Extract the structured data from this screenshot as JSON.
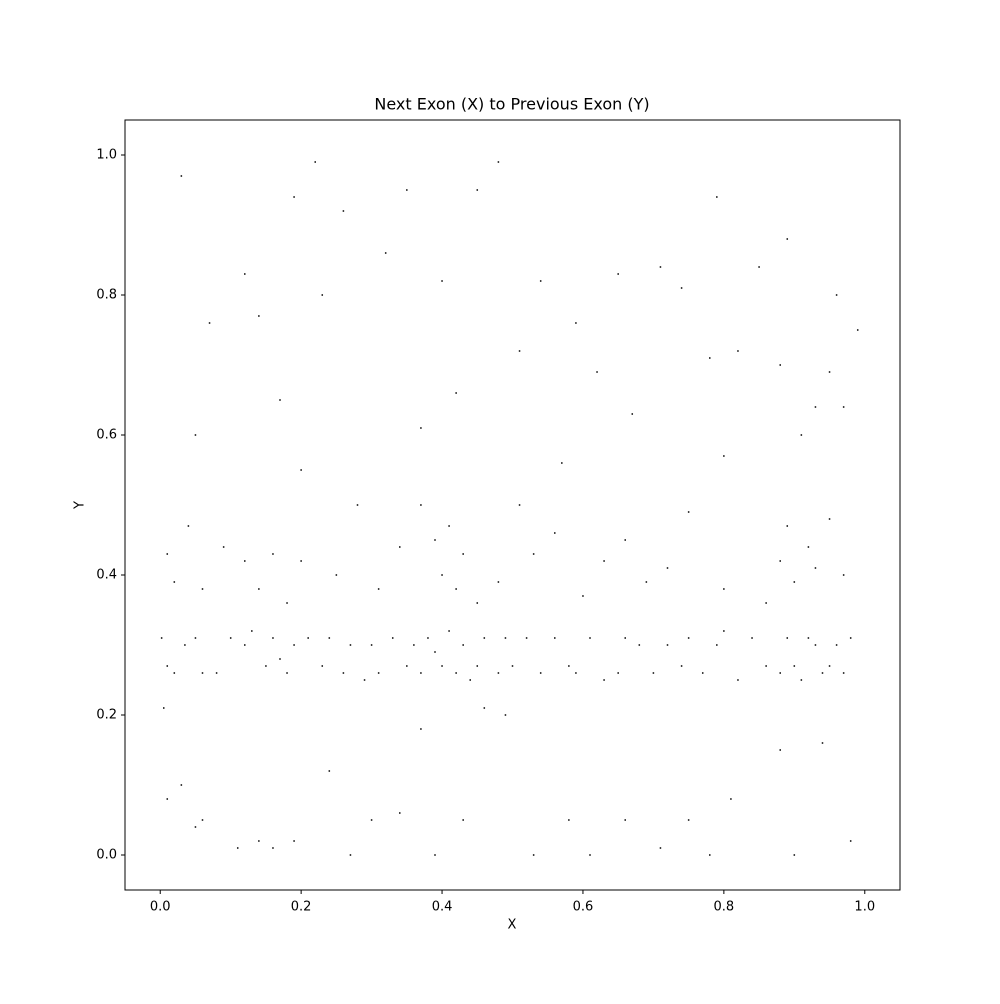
{
  "chart_data": {
    "type": "scatter",
    "title": "Next Exon (X) to Previous Exon (Y)",
    "x_label": "X",
    "y_label": "Y",
    "color": "#000000",
    "xlim": [
      -0.05,
      1.05
    ],
    "ylim": [
      -0.05,
      1.05
    ],
    "xticks": [
      {
        "value": 0,
        "label": "0.0"
      },
      0.2,
      0.4,
      0.6,
      0.8,
      {
        "value": 1,
        "label": "1.0"
      }
    ],
    "yticks": [
      {
        "value": 0,
        "label": "0.0"
      },
      0.2,
      0.4,
      0.6,
      0.8,
      {
        "value": 1,
        "label": "1.0"
      }
    ],
    "x": [
      0.002,
      0.01,
      0.02,
      0.035,
      0.05,
      0.06,
      0.08,
      0.1,
      0.12,
      0.13,
      0.15,
      0.16,
      0.17,
      0.18,
      0.19,
      0.21,
      0.23,
      0.24,
      0.26,
      0.27,
      0.29,
      0.3,
      0.31,
      0.33,
      0.35,
      0.36,
      0.37,
      0.38,
      0.39,
      0.4,
      0.41,
      0.42,
      0.43,
      0.44,
      0.45,
      0.46,
      0.48,
      0.49,
      0.5,
      0.52,
      0.54,
      0.56,
      0.58,
      0.59,
      0.61,
      0.63,
      0.65,
      0.66,
      0.68,
      0.7,
      0.72,
      0.74,
      0.75,
      0.77,
      0.79,
      0.8,
      0.82,
      0.84,
      0.86,
      0.88,
      0.89,
      0.9,
      0.91,
      0.92,
      0.93,
      0.94,
      0.95,
      0.96,
      0.97,
      0.98,
      0.01,
      0.02,
      0.04,
      0.06,
      0.09,
      0.12,
      0.14,
      0.16,
      0.18,
      0.2,
      0.25,
      0.28,
      0.31,
      0.34,
      0.37,
      0.39,
      0.4,
      0.41,
      0.42,
      0.43,
      0.45,
      0.48,
      0.51,
      0.53,
      0.56,
      0.6,
      0.63,
      0.66,
      0.69,
      0.72,
      0.75,
      0.8,
      0.86,
      0.88,
      0.89,
      0.9,
      0.92,
      0.93,
      0.95,
      0.97,
      0.03,
      0.05,
      0.07,
      0.12,
      0.14,
      0.17,
      0.19,
      0.22,
      0.23,
      0.26,
      0.32,
      0.35,
      0.37,
      0.4,
      0.42,
      0.45,
      0.48,
      0.51,
      0.54,
      0.57,
      0.59,
      0.62,
      0.65,
      0.67,
      0.71,
      0.74,
      0.78,
      0.79,
      0.82,
      0.85,
      0.88,
      0.89,
      0.91,
      0.93,
      0.95,
      0.96,
      0.97,
      0.99,
      0.2,
      0.8,
      0.005,
      0.01,
      0.03,
      0.05,
      0.06,
      0.11,
      0.14,
      0.16,
      0.19,
      0.24,
      0.27,
      0.3,
      0.34,
      0.37,
      0.39,
      0.43,
      0.46,
      0.49,
      0.53,
      0.58,
      0.61,
      0.66,
      0.71,
      0.75,
      0.78,
      0.81,
      0.88,
      0.9,
      0.94,
      0.98
    ],
    "values": [
      0.31,
      0.27,
      0.26,
      0.3,
      0.31,
      0.26,
      0.26,
      0.31,
      0.3,
      0.32,
      0.27,
      0.31,
      0.28,
      0.26,
      0.3,
      0.31,
      0.27,
      0.31,
      0.26,
      0.3,
      0.25,
      0.3,
      0.26,
      0.31,
      0.27,
      0.3,
      0.26,
      0.31,
      0.29,
      0.27,
      0.32,
      0.26,
      0.3,
      0.25,
      0.27,
      0.31,
      0.26,
      0.31,
      0.27,
      0.31,
      0.26,
      0.31,
      0.27,
      0.26,
      0.31,
      0.25,
      0.26,
      0.31,
      0.3,
      0.26,
      0.3,
      0.27,
      0.31,
      0.26,
      0.3,
      0.32,
      0.25,
      0.31,
      0.27,
      0.26,
      0.31,
      0.27,
      0.25,
      0.31,
      0.3,
      0.26,
      0.27,
      0.3,
      0.26,
      0.31,
      0.43,
      0.39,
      0.47,
      0.38,
      0.44,
      0.42,
      0.38,
      0.43,
      0.36,
      0.42,
      0.4,
      0.5,
      0.38,
      0.44,
      0.5,
      0.45,
      0.4,
      0.47,
      0.38,
      0.43,
      0.36,
      0.39,
      0.5,
      0.43,
      0.46,
      0.37,
      0.42,
      0.45,
      0.39,
      0.41,
      0.49,
      0.38,
      0.36,
      0.42,
      0.47,
      0.39,
      0.44,
      0.41,
      0.48,
      0.4,
      0.97,
      0.6,
      0.76,
      0.83,
      0.77,
      0.65,
      0.94,
      0.99,
      0.8,
      0.92,
      0.86,
      0.95,
      0.61,
      0.82,
      0.66,
      0.95,
      0.99,
      0.72,
      0.82,
      0.56,
      0.76,
      0.69,
      0.83,
      0.63,
      0.84,
      0.81,
      0.71,
      0.94,
      0.72,
      0.84,
      0.7,
      0.88,
      0.6,
      0.64,
      0.69,
      0.8,
      0.64,
      0.75,
      0.55,
      0.57,
      0.21,
      0.08,
      0.1,
      0.04,
      0.05,
      0.01,
      0.02,
      0.01,
      0.02,
      0.12,
      0.0,
      0.05,
      0.06,
      0.18,
      0.0,
      0.05,
      0.21,
      0.2,
      0.0,
      0.05,
      0.0,
      0.05,
      0.01,
      0.05,
      0.0,
      0.08,
      0.15,
      0.0,
      0.16,
      0.02
    ]
  }
}
